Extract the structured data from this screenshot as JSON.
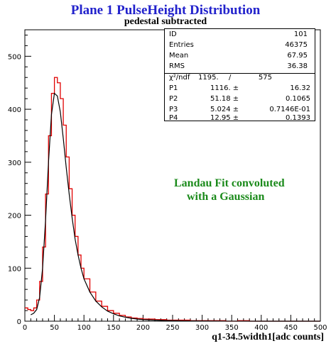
{
  "chart_data": {
    "type": "histogram",
    "title": "Plane 1 PulseHeight Distribution",
    "subtitle": "pedestal subtracted",
    "xlabel": "q1-34.5width1[adc counts]",
    "ylabel": "",
    "xlim": [
      0,
      500
    ],
    "ylim": [
      0,
      550
    ],
    "x_ticks": [
      0,
      50,
      100,
      150,
      200,
      250,
      300,
      350,
      400,
      450,
      500
    ],
    "y_ticks": [
      0,
      100,
      200,
      300,
      400,
      500
    ],
    "annotation": [
      "Landau Fit convoluted",
      "with a Gaussian"
    ],
    "series": [
      {
        "style": "histogram",
        "color": "#e00000",
        "x": [
          0,
          5,
          10,
          15,
          20,
          25,
          30,
          35,
          40,
          45,
          50,
          55,
          60,
          65,
          70,
          75,
          80,
          85,
          90,
          95,
          100,
          110,
          120,
          130,
          140,
          150,
          160,
          170,
          180,
          190,
          200,
          220,
          240,
          260,
          280,
          300,
          320,
          340,
          360,
          380,
          400,
          450,
          500
        ],
        "values": [
          25,
          22,
          20,
          25,
          40,
          75,
          140,
          240,
          350,
          430,
          460,
          450,
          420,
          370,
          310,
          250,
          200,
          160,
          125,
          100,
          80,
          55,
          38,
          28,
          20,
          15,
          11,
          8,
          6,
          5,
          4,
          3,
          2,
          2,
          1,
          1,
          1,
          0,
          1,
          0,
          0,
          0,
          0
        ]
      },
      {
        "style": "fit",
        "color": "#000000",
        "x": [
          10,
          15,
          20,
          25,
          30,
          35,
          40,
          45,
          50,
          55,
          60,
          65,
          70,
          75,
          80,
          85,
          90,
          95,
          100,
          110,
          120,
          130,
          140,
          150,
          160,
          170,
          180,
          190,
          200,
          220,
          240,
          260,
          280,
          300,
          350,
          400,
          450,
          500
        ],
        "values": [
          12,
          15,
          22,
          45,
          100,
          190,
          300,
          390,
          430,
          425,
          395,
          345,
          290,
          240,
          195,
          155,
          125,
          100,
          80,
          55,
          38,
          27,
          19,
          14,
          10,
          7.5,
          5.5,
          4,
          3,
          2,
          1.2,
          0.8,
          0.5,
          0.3,
          0.1,
          0,
          0,
          0
        ]
      }
    ],
    "stats": {
      "ID": "101",
      "Entries": "46375",
      "Mean": "67.95",
      "RMS": "36.38",
      "chi2_label": "χ²/ndf",
      "chi2": "1195.",
      "ndf": "575",
      "params": [
        {
          "name": "P1",
          "value": "1116. ±",
          "error": "16.32"
        },
        {
          "name": "P2",
          "value": "51.18 ±",
          "error": "0.1065"
        },
        {
          "name": "P3",
          "value": "5.024 ±",
          "error": "0.7146E-01"
        },
        {
          "name": "P4",
          "value": "12.95 ±",
          "error": "0.1393"
        }
      ]
    }
  }
}
